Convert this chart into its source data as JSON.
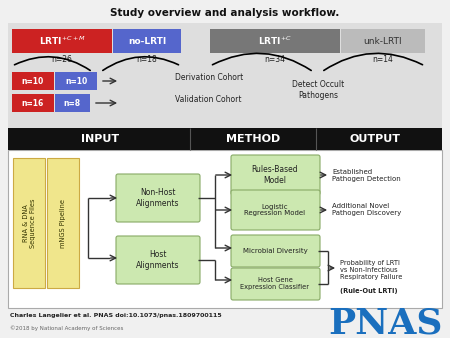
{
  "title": "Study overview and analysis workflow.",
  "bg_color": "#e8e8e8",
  "red": "#cc2222",
  "blue": "#5566cc",
  "gray_dark": "#777777",
  "gray_light": "#bbbbbb",
  "green_box": "#cce8b0",
  "green_edge": "#88aa66",
  "yellow_box": "#f0e68c",
  "yellow_edge": "#ccaa44",
  "black": "#111111",
  "pnas_blue": "#1a6fbe",
  "citation": "Charles Langelier et al. PNAS doi:10.1073/pnas.1809700115",
  "copyright": "©2018 by National Academy of Sciences"
}
